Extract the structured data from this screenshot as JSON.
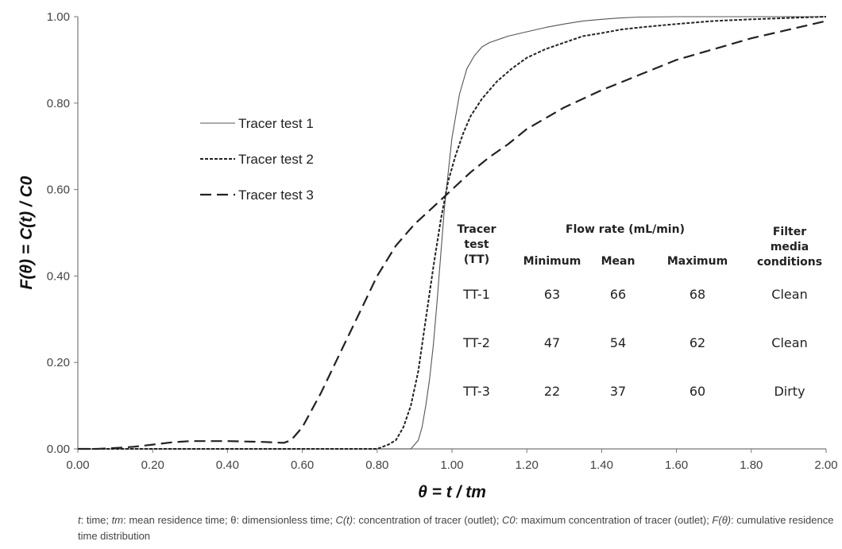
{
  "chart_data": {
    "type": "line",
    "xlabel": "θ = t / tm",
    "ylabel": "F(θ) = C(t) / C0",
    "xlim": [
      0,
      2
    ],
    "ylim": [
      0,
      1
    ],
    "x_ticks": [
      "0.00",
      "0.20",
      "0.40",
      "0.60",
      "0.80",
      "1.00",
      "1.20",
      "1.40",
      "1.60",
      "1.80",
      "2.00"
    ],
    "y_ticks": [
      "0.00",
      "0.20",
      "0.40",
      "0.60",
      "0.80",
      "1.00"
    ],
    "grid": false,
    "legend_position": "upper-left",
    "series": [
      {
        "name": "Tracer test 1",
        "style": "solid",
        "color": "#555555",
        "x": [
          0,
          0.89,
          0.9,
          0.91,
          0.92,
          0.93,
          0.94,
          0.95,
          0.96,
          0.97,
          0.98,
          0.99,
          1.0,
          1.02,
          1.04,
          1.06,
          1.08,
          1.1,
          1.15,
          1.2,
          1.25,
          1.3,
          1.35,
          1.4,
          1.45,
          1.5,
          1.6,
          2.0
        ],
        "y": [
          0,
          0,
          0.01,
          0.02,
          0.05,
          0.1,
          0.16,
          0.24,
          0.34,
          0.45,
          0.56,
          0.64,
          0.72,
          0.82,
          0.88,
          0.91,
          0.93,
          0.94,
          0.955,
          0.965,
          0.975,
          0.983,
          0.99,
          0.994,
          0.997,
          0.999,
          1.0,
          1.0
        ]
      },
      {
        "name": "Tracer test 2",
        "style": "dotted",
        "color": "#222222",
        "x": [
          0,
          0.8,
          0.83,
          0.85,
          0.87,
          0.89,
          0.91,
          0.93,
          0.95,
          0.97,
          0.99,
          1.01,
          1.03,
          1.05,
          1.08,
          1.12,
          1.16,
          1.2,
          1.25,
          1.3,
          1.35,
          1.4,
          1.45,
          1.5,
          1.6,
          1.7,
          1.8,
          1.9,
          2.0
        ],
        "y": [
          0,
          0,
          0.01,
          0.02,
          0.05,
          0.1,
          0.18,
          0.3,
          0.42,
          0.53,
          0.62,
          0.68,
          0.73,
          0.77,
          0.81,
          0.85,
          0.88,
          0.905,
          0.925,
          0.94,
          0.955,
          0.962,
          0.97,
          0.975,
          0.983,
          0.99,
          0.994,
          0.997,
          1.0
        ]
      },
      {
        "name": "Tracer test 3",
        "style": "dashed",
        "color": "#222222",
        "x": [
          0,
          0.05,
          0.1,
          0.15,
          0.2,
          0.25,
          0.3,
          0.4,
          0.5,
          0.55,
          0.57,
          0.6,
          0.65,
          0.7,
          0.75,
          0.8,
          0.85,
          0.9,
          0.95,
          1.0,
          1.05,
          1.1,
          1.15,
          1.2,
          1.3,
          1.4,
          1.5,
          1.6,
          1.7,
          1.8,
          1.9,
          2.0
        ],
        "y": [
          0,
          0,
          0.002,
          0.005,
          0.01,
          0.015,
          0.018,
          0.018,
          0.016,
          0.014,
          0.02,
          0.05,
          0.13,
          0.22,
          0.31,
          0.4,
          0.47,
          0.52,
          0.56,
          0.6,
          0.64,
          0.675,
          0.705,
          0.74,
          0.79,
          0.83,
          0.865,
          0.9,
          0.925,
          0.95,
          0.97,
          0.99
        ]
      }
    ],
    "table": {
      "head_test": [
        "Tracer",
        "test",
        "(TT)"
      ],
      "head_flow": "Flow rate (mL/min)",
      "head_min": "Minimum",
      "head_mean": "Mean",
      "head_max": "Maximum",
      "head_filter": [
        "Filter",
        "media",
        "conditions"
      ],
      "rows": [
        {
          "tt": "TT-1",
          "min": "63",
          "mean": "66",
          "max": "68",
          "cond": "Clean"
        },
        {
          "tt": "TT-2",
          "min": "47",
          "mean": "54",
          "max": "62",
          "cond": "Clean"
        },
        {
          "tt": "TT-3",
          "min": "22",
          "mean": "37",
          "max": "60",
          "cond": "Dirty"
        }
      ]
    }
  },
  "footnote": {
    "t_sym": "t",
    "t_desc": ": time; ",
    "tm_sym": "tm",
    "tm_desc": ": mean residence time; θ: dimensionless time; ",
    "ct_sym": "C(t)",
    "ct_desc": ": concentration of tracer (outlet); ",
    "c0_sym": "C0",
    "c0_desc": ": maximum concentration of tracer (outlet); ",
    "f_sym": "F(θ)",
    "f_desc": ": cumulative residence time distribution"
  }
}
